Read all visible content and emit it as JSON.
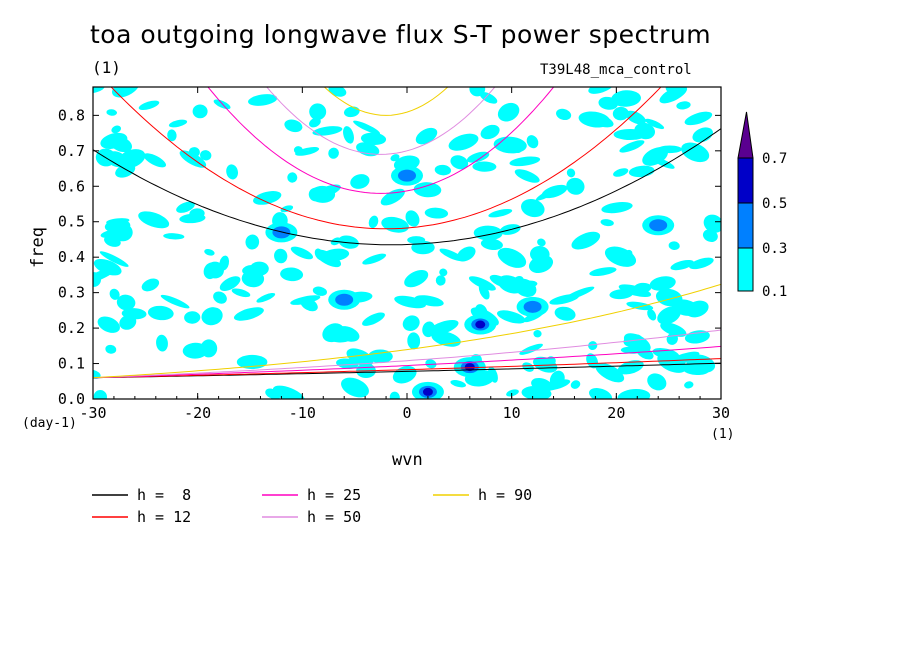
{
  "chart_data": {
    "type": "heatmap",
    "title": "toa outgoing longwave flux S-T power spectrum",
    "subtitle_left": "(1)",
    "subtitle_right": "T39L48_mca_control",
    "xlabel": "wvn",
    "ylabel": "freq",
    "x_unit": "(1)",
    "y_unit": "(day-1)",
    "xlim": [
      -30,
      30
    ],
    "ylim": [
      0,
      0.88
    ],
    "x_ticks": [
      "-30",
      "-20",
      "-10",
      "0",
      "10",
      "20",
      "30"
    ],
    "y_ticks": [
      "0.0",
      "0.1",
      "0.2",
      "0.3",
      "0.4",
      "0.5",
      "0.6",
      "0.7",
      "0.8"
    ],
    "colorbar": {
      "levels": [
        "0.1",
        "0.3",
        "0.5",
        "0.7"
      ],
      "colors": [
        "#00ffff",
        "#0080ff",
        "#0000c8",
        "#5a0090"
      ]
    },
    "curves": [
      {
        "label": "h =  8",
        "color": "#000000"
      },
      {
        "label": "h = 12",
        "color": "#ff0000"
      },
      {
        "label": "h = 25",
        "color": "#ff00c0"
      },
      {
        "label": "h = 50",
        "color": "#e08ce0"
      },
      {
        "label": "h = 90",
        "color": "#f0d000"
      }
    ],
    "hotspots": [
      {
        "x": 2,
        "y": 0.02,
        "level": "0.5"
      },
      {
        "x": 7,
        "y": 0.21,
        "level": "0.5"
      },
      {
        "x": 6,
        "y": 0.09,
        "level": "0.5"
      },
      {
        "x": -12,
        "y": 0.47,
        "level": "0.3"
      },
      {
        "x": 0,
        "y": 0.63,
        "level": "0.3"
      },
      {
        "x": -6,
        "y": 0.28,
        "level": "0.3"
      },
      {
        "x": 12,
        "y": 0.26,
        "level": "0.3"
      },
      {
        "x": 24,
        "y": 0.49,
        "level": "0.3"
      }
    ]
  }
}
